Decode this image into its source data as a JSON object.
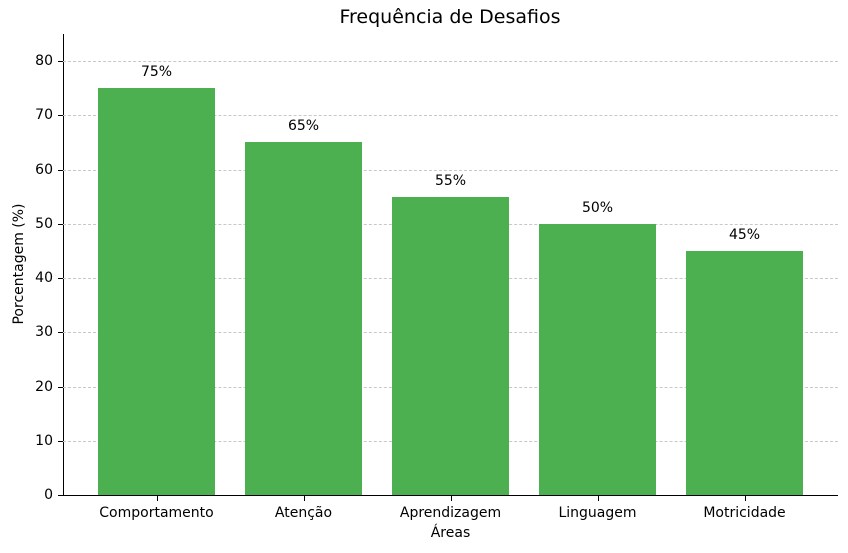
{
  "chart_data": {
    "type": "bar",
    "title": "Frequência de Desafios",
    "xlabel": "Áreas",
    "ylabel": "Porcentagem (%)",
    "categories": [
      "Comportamento",
      "Atenção",
      "Aprendizagem",
      "Linguagem",
      "Motricidade"
    ],
    "values": [
      75,
      65,
      55,
      50,
      45
    ],
    "value_labels": [
      "75%",
      "65%",
      "55%",
      "50%",
      "45%"
    ],
    "ylim": [
      0,
      85
    ],
    "yticks": [
      0,
      10,
      20,
      30,
      40,
      50,
      60,
      70,
      80
    ],
    "ytick_labels": [
      "0",
      "10",
      "20",
      "30",
      "40",
      "50",
      "60",
      "70",
      "80"
    ],
    "grid": {
      "axis": "y",
      "style": "dashed",
      "color": "#c8c8c8"
    },
    "bar_color": "#4caf50",
    "legend": null
  }
}
